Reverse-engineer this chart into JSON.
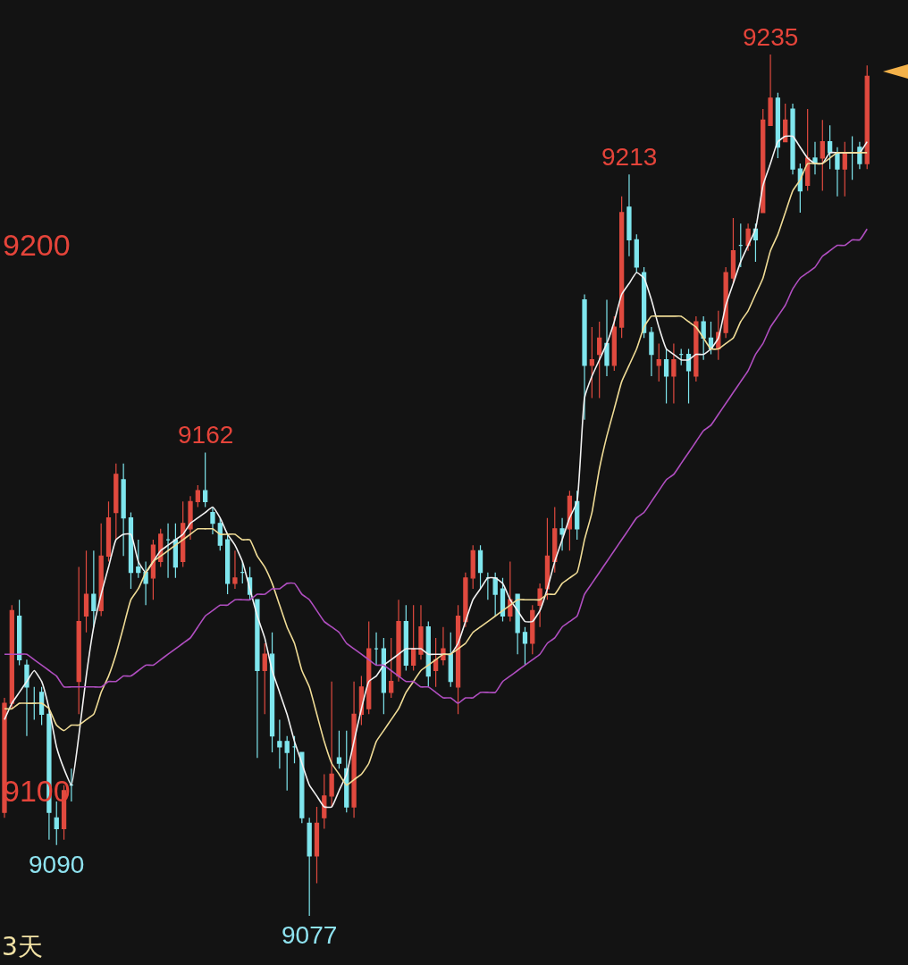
{
  "chart_data": {
    "type": "candlestick",
    "categories": [
      null,
      null,
      null,
      null,
      null,
      null,
      null,
      null,
      null,
      null,
      null,
      null,
      null,
      null,
      null,
      null,
      null,
      null,
      null,
      null,
      null,
      null,
      null,
      null,
      null,
      null,
      null,
      null,
      null,
      null,
      null,
      null,
      null,
      null,
      null,
      null,
      null,
      null,
      null,
      null,
      null,
      null,
      null,
      null,
      null,
      null,
      null,
      null,
      null,
      null,
      null,
      null,
      null,
      null,
      null,
      null,
      null,
      null,
      null,
      null,
      null,
      null,
      null,
      null,
      null,
      null,
      null,
      null,
      null,
      null,
      null,
      null,
      null,
      null,
      null,
      null,
      null,
      null,
      null,
      null,
      null,
      null,
      null,
      null,
      null,
      null,
      null,
      null,
      null,
      null,
      null,
      null,
      null,
      null,
      null,
      null,
      null,
      null,
      null,
      null,
      null,
      null,
      null,
      null,
      null,
      null,
      null,
      null,
      null,
      null,
      null,
      null,
      null,
      null,
      null,
      null,
      null
    ],
    "ohlc": [
      [
        9096,
        9117,
        9095,
        9116
      ],
      [
        9116,
        9134,
        9115,
        9133
      ],
      [
        9132,
        9135,
        9123,
        9124
      ],
      [
        9123,
        9124,
        9110,
        9119
      ],
      [
        9116,
        9119,
        9113,
        9116
      ],
      [
        9118,
        9119,
        9112,
        9114
      ],
      [
        9114,
        9115,
        9091,
        9096
      ],
      [
        9095,
        9098,
        9090,
        9093
      ],
      [
        9093,
        9101,
        9091,
        9100
      ],
      [
        9101,
        9104,
        9098,
        9101
      ],
      [
        9120,
        9141,
        9114,
        9131
      ],
      [
        9132,
        9144,
        9129,
        9136
      ],
      [
        9136,
        9144,
        9130,
        9133
      ],
      [
        9133,
        9149,
        9132,
        9143
      ],
      [
        9143,
        9153,
        9142,
        9150
      ],
      [
        9151,
        9160,
        9146,
        9158
      ],
      [
        9157,
        9160,
        9143,
        9150
      ],
      [
        9150,
        9151,
        9137,
        9140
      ],
      [
        9141,
        9146,
        9139,
        9140
      ],
      [
        9140,
        9142,
        9134,
        9138
      ],
      [
        9139,
        9146,
        9135,
        9145
      ],
      [
        9142,
        9148,
        9141,
        9147
      ],
      [
        9146,
        9149,
        9139,
        9146
      ],
      [
        9146,
        9149,
        9139,
        9141
      ],
      [
        9142,
        9153,
        9141,
        9149
      ],
      [
        9148,
        9154,
        9146,
        9153
      ],
      [
        9153,
        9156,
        9152,
        9155
      ],
      [
        9155,
        9162,
        9152,
        9153
      ],
      [
        9151,
        9152,
        9147,
        9149
      ],
      [
        9149,
        9150,
        9144,
        9145
      ],
      [
        9146,
        9147,
        9136,
        9138
      ],
      [
        9138,
        9144,
        9137,
        9139
      ],
      [
        9140,
        9142,
        9138,
        9140
      ],
      [
        9139,
        9141,
        9135,
        9136
      ],
      [
        9135,
        9135,
        9106,
        9122
      ],
      [
        9122,
        9127,
        9114,
        9125
      ],
      [
        9125,
        9129,
        9107,
        9110
      ],
      [
        9109,
        9113,
        9104,
        9108
      ],
      [
        9109,
        9110,
        9100,
        9107
      ],
      [
        9108,
        9110,
        9105,
        9108
      ],
      [
        9107,
        9107,
        9094,
        9095
      ],
      [
        9094,
        9095,
        9077,
        9088
      ],
      [
        9088,
        9097,
        9083,
        9094
      ],
      [
        9095,
        9103,
        9093,
        9099
      ],
      [
        9099,
        9120,
        9097,
        9103
      ],
      [
        9106,
        9111,
        9104,
        9105
      ],
      [
        9104,
        9111,
        9096,
        9097
      ],
      [
        9097,
        9120,
        9095,
        9114
      ],
      [
        9114,
        9121,
        9112,
        9119
      ],
      [
        9115,
        9131,
        9114,
        9126
      ],
      [
        9126,
        9129,
        9123,
        9126
      ],
      [
        9126,
        9128,
        9114,
        9118
      ],
      [
        9118,
        9128,
        9117,
        9120
      ],
      [
        9121,
        9135,
        9120,
        9131
      ],
      [
        9131,
        9134,
        9122,
        9123
      ],
      [
        9123,
        9134,
        9122,
        9126
      ],
      [
        9125,
        9134,
        9124,
        9130
      ],
      [
        9130,
        9131,
        9119,
        9121
      ],
      [
        9122,
        9128,
        9119,
        9124
      ],
      [
        9124,
        9130,
        9123,
        9126
      ],
      [
        9125,
        9129,
        9119,
        9120
      ],
      [
        9119,
        9134,
        9114,
        9132
      ],
      [
        9131,
        9140,
        9130,
        9139
      ],
      [
        9139,
        9145,
        9137,
        9144
      ],
      [
        9144,
        9145,
        9137,
        9140
      ],
      [
        9139,
        9140,
        9135,
        9139
      ],
      [
        9139,
        9140,
        9132,
        9136
      ],
      [
        9137,
        9139,
        9131,
        9132
      ],
      [
        9132,
        9142,
        9131,
        9135
      ],
      [
        9136,
        9136,
        9125,
        9129
      ],
      [
        9129,
        9130,
        9123,
        9127
      ],
      [
        9127,
        9134,
        9125,
        9133
      ],
      [
        9134,
        9138,
        9130,
        9137
      ],
      [
        9137,
        9150,
        9135,
        9143
      ],
      [
        9142,
        9152,
        9140,
        9148
      ],
      [
        9148,
        9150,
        9144,
        9147
      ],
      [
        9148,
        9155,
        9144,
        9154
      ],
      [
        9153,
        9155,
        9146,
        9148
      ],
      [
        9190,
        9191,
        9168,
        9178
      ],
      [
        9178,
        9185,
        9172,
        9179
      ],
      [
        9180,
        9186,
        9172,
        9183
      ],
      [
        9182,
        9190,
        9176,
        9178
      ],
      [
        9178,
        9187,
        9177,
        9185
      ],
      [
        9185,
        9209,
        9183,
        9206
      ],
      [
        9207,
        9213,
        9198,
        9201
      ],
      [
        9201,
        9202,
        9195,
        9196
      ],
      [
        9195,
        9196,
        9183,
        9184
      ],
      [
        9184,
        9185,
        9176,
        9180
      ],
      [
        9178,
        9182,
        9175,
        9179
      ],
      [
        9179,
        9181,
        9171,
        9176
      ],
      [
        9176,
        9182,
        9171,
        9179
      ],
      [
        9180,
        9181,
        9178,
        9180
      ],
      [
        9180,
        9181,
        9171,
        9177
      ],
      [
        9176,
        9187,
        9175,
        9186
      ],
      [
        9186,
        9187,
        9179,
        9183
      ],
      [
        9183,
        9186,
        9180,
        9181
      ],
      [
        9181,
        9188,
        9179,
        9184
      ],
      [
        9184,
        9196,
        9183,
        9195
      ],
      [
        9194,
        9205,
        9193,
        9199
      ],
      [
        9200,
        9204,
        9196,
        9200
      ],
      [
        9200,
        9204,
        9199,
        9203
      ],
      [
        9203,
        9204,
        9197,
        9201
      ],
      [
        9206,
        9225,
        9206,
        9223
      ],
      [
        9222,
        9235,
        9222,
        9227
      ],
      [
        9227,
        9228,
        9216,
        9218
      ],
      [
        9219,
        9226,
        9219,
        9223
      ],
      [
        9225,
        9226,
        9213,
        9214
      ],
      [
        9214,
        9215,
        9206,
        9210
      ],
      [
        9211,
        9225,
        9210,
        9216
      ],
      [
        9216,
        9219,
        9213,
        9215
      ],
      [
        9216,
        9223,
        9210,
        9219
      ],
      [
        9219,
        9222,
        9214,
        9217
      ],
      [
        9217,
        9218,
        9209,
        9214
      ],
      [
        9214,
        9219,
        9209,
        9217
      ],
      [
        9217,
        9220,
        9212,
        9217
      ],
      [
        9218,
        9219,
        9214,
        9215
      ],
      [
        9215,
        9233,
        9214,
        9231
      ]
    ],
    "colors": [
      "#e04a3f",
      "#e04a3f",
      "#7fe6ee",
      "#7fe6ee",
      "#7fe6ee",
      "#7fe6ee",
      "#7fe6ee",
      "#7fe6ee",
      "#e04a3f",
      "#7fe6ee",
      "#e04a3f",
      "#e04a3f",
      "#7fe6ee",
      "#e04a3f",
      "#e04a3f",
      "#e04a3f",
      "#7fe6ee",
      "#7fe6ee",
      "#7fe6ee",
      "#7fe6ee",
      "#e04a3f",
      "#e04a3f",
      "#7fe6ee",
      "#7fe6ee",
      "#e04a3f",
      "#e04a3f",
      "#e04a3f",
      "#7fe6ee",
      "#7fe6ee",
      "#7fe6ee",
      "#7fe6ee",
      "#e04a3f",
      "#7fe6ee",
      "#7fe6ee",
      "#7fe6ee",
      "#e04a3f",
      "#7fe6ee",
      "#7fe6ee",
      "#7fe6ee",
      "#7fe6ee",
      "#7fe6ee",
      "#7fe6ee",
      "#e04a3f",
      "#e04a3f",
      "#e04a3f",
      "#7fe6ee",
      "#7fe6ee",
      "#e04a3f",
      "#e04a3f",
      "#e04a3f",
      "#7fe6ee",
      "#7fe6ee",
      "#e04a3f",
      "#e04a3f",
      "#7fe6ee",
      "#e04a3f",
      "#e04a3f",
      "#7fe6ee",
      "#e04a3f",
      "#e04a3f",
      "#7fe6ee",
      "#e04a3f",
      "#e04a3f",
      "#e04a3f",
      "#7fe6ee",
      "#7fe6ee",
      "#7fe6ee",
      "#7fe6ee",
      "#e04a3f",
      "#7fe6ee",
      "#7fe6ee",
      "#e04a3f",
      "#e04a3f",
      "#e04a3f",
      "#e04a3f",
      "#7fe6ee",
      "#e04a3f",
      "#7fe6ee",
      "#7fe6ee",
      "#e04a3f",
      "#e04a3f",
      "#7fe6ee",
      "#e04a3f",
      "#e04a3f",
      "#7fe6ee",
      "#7fe6ee",
      "#7fe6ee",
      "#7fe6ee",
      "#e04a3f",
      "#7fe6ee",
      "#e04a3f",
      "#7fe6ee",
      "#7fe6ee",
      "#e04a3f",
      "#7fe6ee",
      "#7fe6ee",
      "#e04a3f",
      "#e04a3f",
      "#e04a3f",
      "#7fe6ee",
      "#e04a3f",
      "#7fe6ee",
      "#e04a3f",
      "#e04a3f",
      "#7fe6ee",
      "#e04a3f",
      "#7fe6ee",
      "#7fe6ee",
      "#e04a3f",
      "#7fe6ee",
      "#e04a3f",
      "#7fe6ee",
      "#7fe6ee",
      "#e04a3f",
      "#7fe6ee",
      "#7fe6ee",
      "#e04a3f"
    ],
    "series": [
      {
        "type": "line",
        "color": "#f2f2f2",
        "values": [
          9113,
          9116,
          9118,
          9120,
          9122,
          9120,
          9115,
          9108,
          9104,
          9101,
          9110,
          9121,
          9130,
          9136,
          9141,
          9146,
          9147,
          9147,
          9142,
          9140,
          9142,
          9144,
          9145,
          9146,
          9147,
          9149,
          9150,
          9151,
          9152,
          9150,
          9147,
          9145,
          9142,
          9137,
          9132,
          9128,
          9122,
          9118,
          9114,
          9109,
          9105,
          9101,
          9099,
          9097,
          9097,
          9100,
          9103,
          9109,
          9115,
          9120,
          9121,
          9123,
          9124,
          9125,
          9126,
          9126,
          9126,
          9125,
          9125,
          9125,
          9125,
          9127,
          9131,
          9135,
          9137,
          9139,
          9139,
          9138,
          9135,
          9133,
          9131,
          9131,
          9133,
          9137,
          9142,
          9146,
          9150,
          9153,
          9172,
          9176,
          9179,
          9182,
          9186,
          9191,
          9193,
          9195,
          9194,
          9190,
          9185,
          9181,
          9180,
          9179,
          9179,
          9180,
          9180,
          9181,
          9183,
          9189,
          9193,
          9197,
          9200,
          9203,
          9211,
          9215,
          9219,
          9220,
          9220,
          9218,
          9216,
          9215,
          9215,
          9217,
          9217,
          9217,
          9217,
          9217,
          9219
        ]
      },
      {
        "type": "line",
        "color": "#f0dc96",
        "values": [
          9115,
          9115,
          9116,
          9116,
          9116,
          9116,
          9115,
          9112,
          9111,
          9112,
          9112,
          9113,
          9114,
          9118,
          9121,
          9125,
          9130,
          9135,
          9137,
          9140,
          9142,
          9143,
          9144,
          9145,
          9146,
          9147,
          9148,
          9148,
          9148,
          9147,
          9147,
          9147,
          9146,
          9146,
          9143,
          9141,
          9138,
          9134,
          9130,
          9127,
          9122,
          9119,
          9114,
          9109,
          9105,
          9103,
          9101,
          9102,
          9103,
          9105,
          9109,
          9111,
          9113,
          9115,
          9118,
          9120,
          9122,
          9123,
          9124,
          9125,
          9125,
          9126,
          9127,
          9129,
          9130,
          9131,
          9132,
          9133,
          9134,
          9135,
          9135,
          9135,
          9135,
          9136,
          9136,
          9138,
          9139,
          9140,
          9146,
          9151,
          9159,
          9165,
          9170,
          9175,
          9178,
          9181,
          9185,
          9187,
          9187,
          9187,
          9187,
          9187,
          9186,
          9185,
          9183,
          9181,
          9181,
          9182,
          9183,
          9186,
          9188,
          9191,
          9194,
          9199,
          9202,
          9206,
          9210,
          9212,
          9215,
          9215,
          9215,
          9216,
          9217,
          9217,
          9217,
          9217,
          9217
        ]
      },
      {
        "type": "line",
        "color": "#b04ec0",
        "values": [
          9125,
          9125,
          9125,
          9125,
          9124,
          9123,
          9122,
          9121,
          9119,
          9119,
          9119,
          9119,
          9119,
          9119,
          9120,
          9120,
          9121,
          9121,
          9122,
          9123,
          9123,
          9124,
          9125,
          9126,
          9127,
          9128,
          9130,
          9132,
          9133,
          9134,
          9134,
          9135,
          9135,
          9135,
          9136,
          9136,
          9137,
          9137,
          9138,
          9138,
          9136,
          9135,
          9133,
          9131,
          9130,
          9129,
          9127,
          9126,
          9125,
          9124,
          9123,
          9123,
          9122,
          9121,
          9120,
          9120,
          9119,
          9119,
          9118,
          9117,
          9117,
          9116,
          9117,
          9117,
          9118,
          9118,
          9118,
          9120,
          9121,
          9122,
          9123,
          9124,
          9125,
          9127,
          9128,
          9130,
          9131,
          9132,
          9136,
          9138,
          9140,
          9142,
          9144,
          9146,
          9148,
          9150,
          9151,
          9153,
          9155,
          9157,
          9158,
          9160,
          9162,
          9164,
          9166,
          9167,
          9169,
          9171,
          9173,
          9175,
          9177,
          9180,
          9182,
          9185,
          9187,
          9189,
          9192,
          9194,
          9195,
          9196,
          9198,
          9199,
          9200,
          9200,
          9201,
          9201,
          9203
        ]
      }
    ],
    "ylim": [
      9068,
      9245
    ],
    "yticks": [
      9100,
      9200
    ],
    "tick_labels": "y",
    "annotations": [
      {
        "text": "9235",
        "y": 9235
      },
      {
        "text": "9213",
        "y": 9213
      },
      {
        "text": "9162",
        "y": 9162
      },
      {
        "text": "9090",
        "y": 9090
      },
      {
        "text": "9077",
        "y": 9077
      },
      "3天"
    ]
  }
}
